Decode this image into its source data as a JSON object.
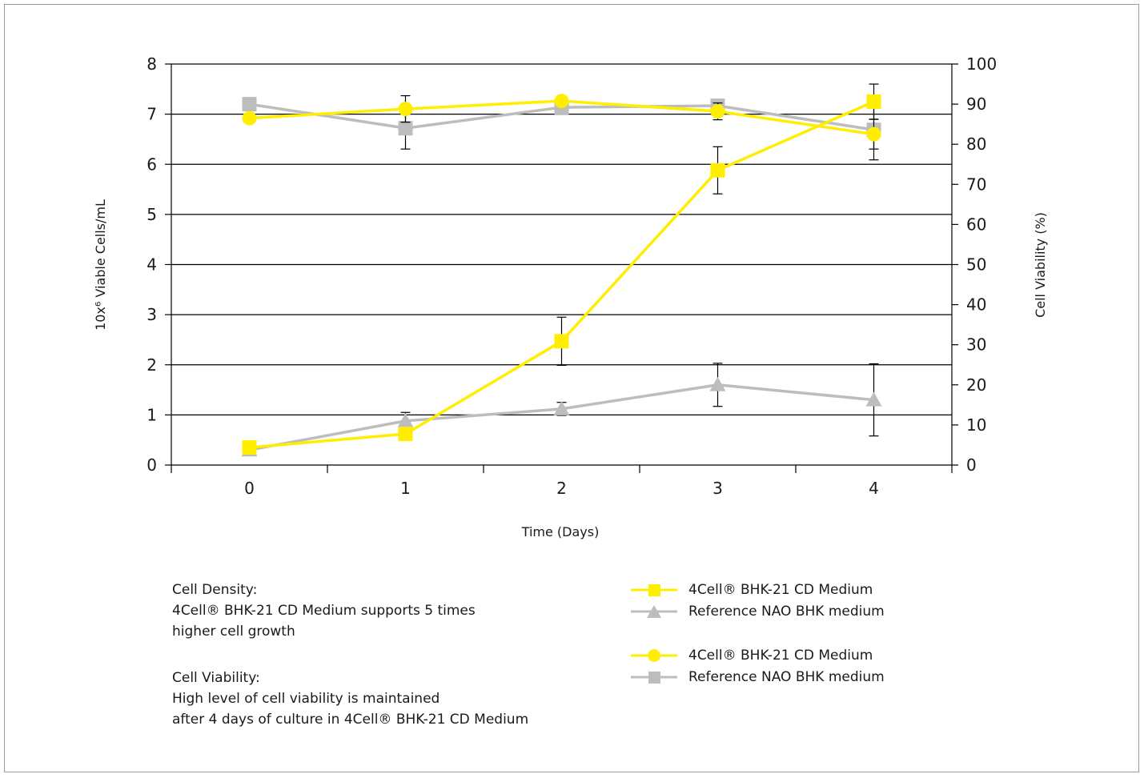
{
  "chart_data": {
    "type": "line",
    "xlabel": "Time (Days)",
    "ylabel_left": "10x⁶ Viable Cells/mL",
    "ylabel_right": "Cell Viability (%)",
    "x": [
      0,
      1,
      2,
      3,
      4
    ],
    "x_ticks": [
      "0",
      "1",
      "2",
      "3",
      "4"
    ],
    "ylim_left": [
      0,
      8
    ],
    "yticks_left": [
      "0",
      "1",
      "2",
      "3",
      "4",
      "5",
      "6",
      "7",
      "8"
    ],
    "ylim_right": [
      0,
      100
    ],
    "yticks_right": [
      "0",
      "10",
      "20",
      "30",
      "40",
      "50",
      "60",
      "70",
      "80",
      "90",
      "100"
    ],
    "grid": "horizontal",
    "series": [
      {
        "name": "4Cell® BHK-21 CD Medium",
        "axis": "left",
        "marker": "square",
        "color": "#ffee00",
        "values": [
          0.35,
          0.62,
          2.47,
          5.88,
          7.25
        ],
        "error": [
          0,
          0,
          0.48,
          0.47,
          0.35
        ]
      },
      {
        "name": "Reference NAO BHK medium",
        "axis": "left",
        "marker": "triangle",
        "color": "#bdbdbd",
        "values": [
          0.3,
          0.88,
          1.12,
          1.6,
          1.3
        ],
        "error": [
          0,
          0.17,
          0.13,
          0.43,
          0.72
        ]
      },
      {
        "name": "4Cell® BHK-21 CD Medium",
        "axis": "right",
        "marker": "circle",
        "color": "#ffee00",
        "values": [
          86.5,
          88.8,
          90.8,
          88.2,
          82.5
        ],
        "error": [
          0,
          3.3,
          0,
          2.1,
          3.7
        ]
      },
      {
        "name": "Reference NAO BHK medium",
        "axis": "right",
        "marker": "square",
        "color": "#bdbdbd",
        "values": [
          90,
          84,
          89.2,
          89.6,
          83.6
        ],
        "error": [
          0,
          5.2,
          0,
          0,
          7.5
        ]
      }
    ]
  },
  "notes": {
    "density_title": "Cell Density:",
    "density_line1": "4Cell® BHK-21 CD Medium supports 5 times",
    "density_line2": "higher cell growth",
    "viability_title": "Cell Viability:",
    "viability_line1": "High level of cell viability is maintained",
    "viability_line2": "after 4 days of culture in 4Cell® BHK-21 CD Medium"
  },
  "legend": {
    "group1": [
      {
        "label": "4Cell® BHK-21 CD Medium",
        "marker": "square",
        "color": "#ffee00"
      },
      {
        "label": "Reference NAO BHK medium",
        "marker": "triangle",
        "color": "#bdbdbd"
      }
    ],
    "group2": [
      {
        "label": "4Cell® BHK-21 CD Medium",
        "marker": "circle",
        "color": "#ffee00"
      },
      {
        "label": "Reference NAO BHK medium",
        "marker": "square",
        "color": "#bdbdbd"
      }
    ]
  }
}
